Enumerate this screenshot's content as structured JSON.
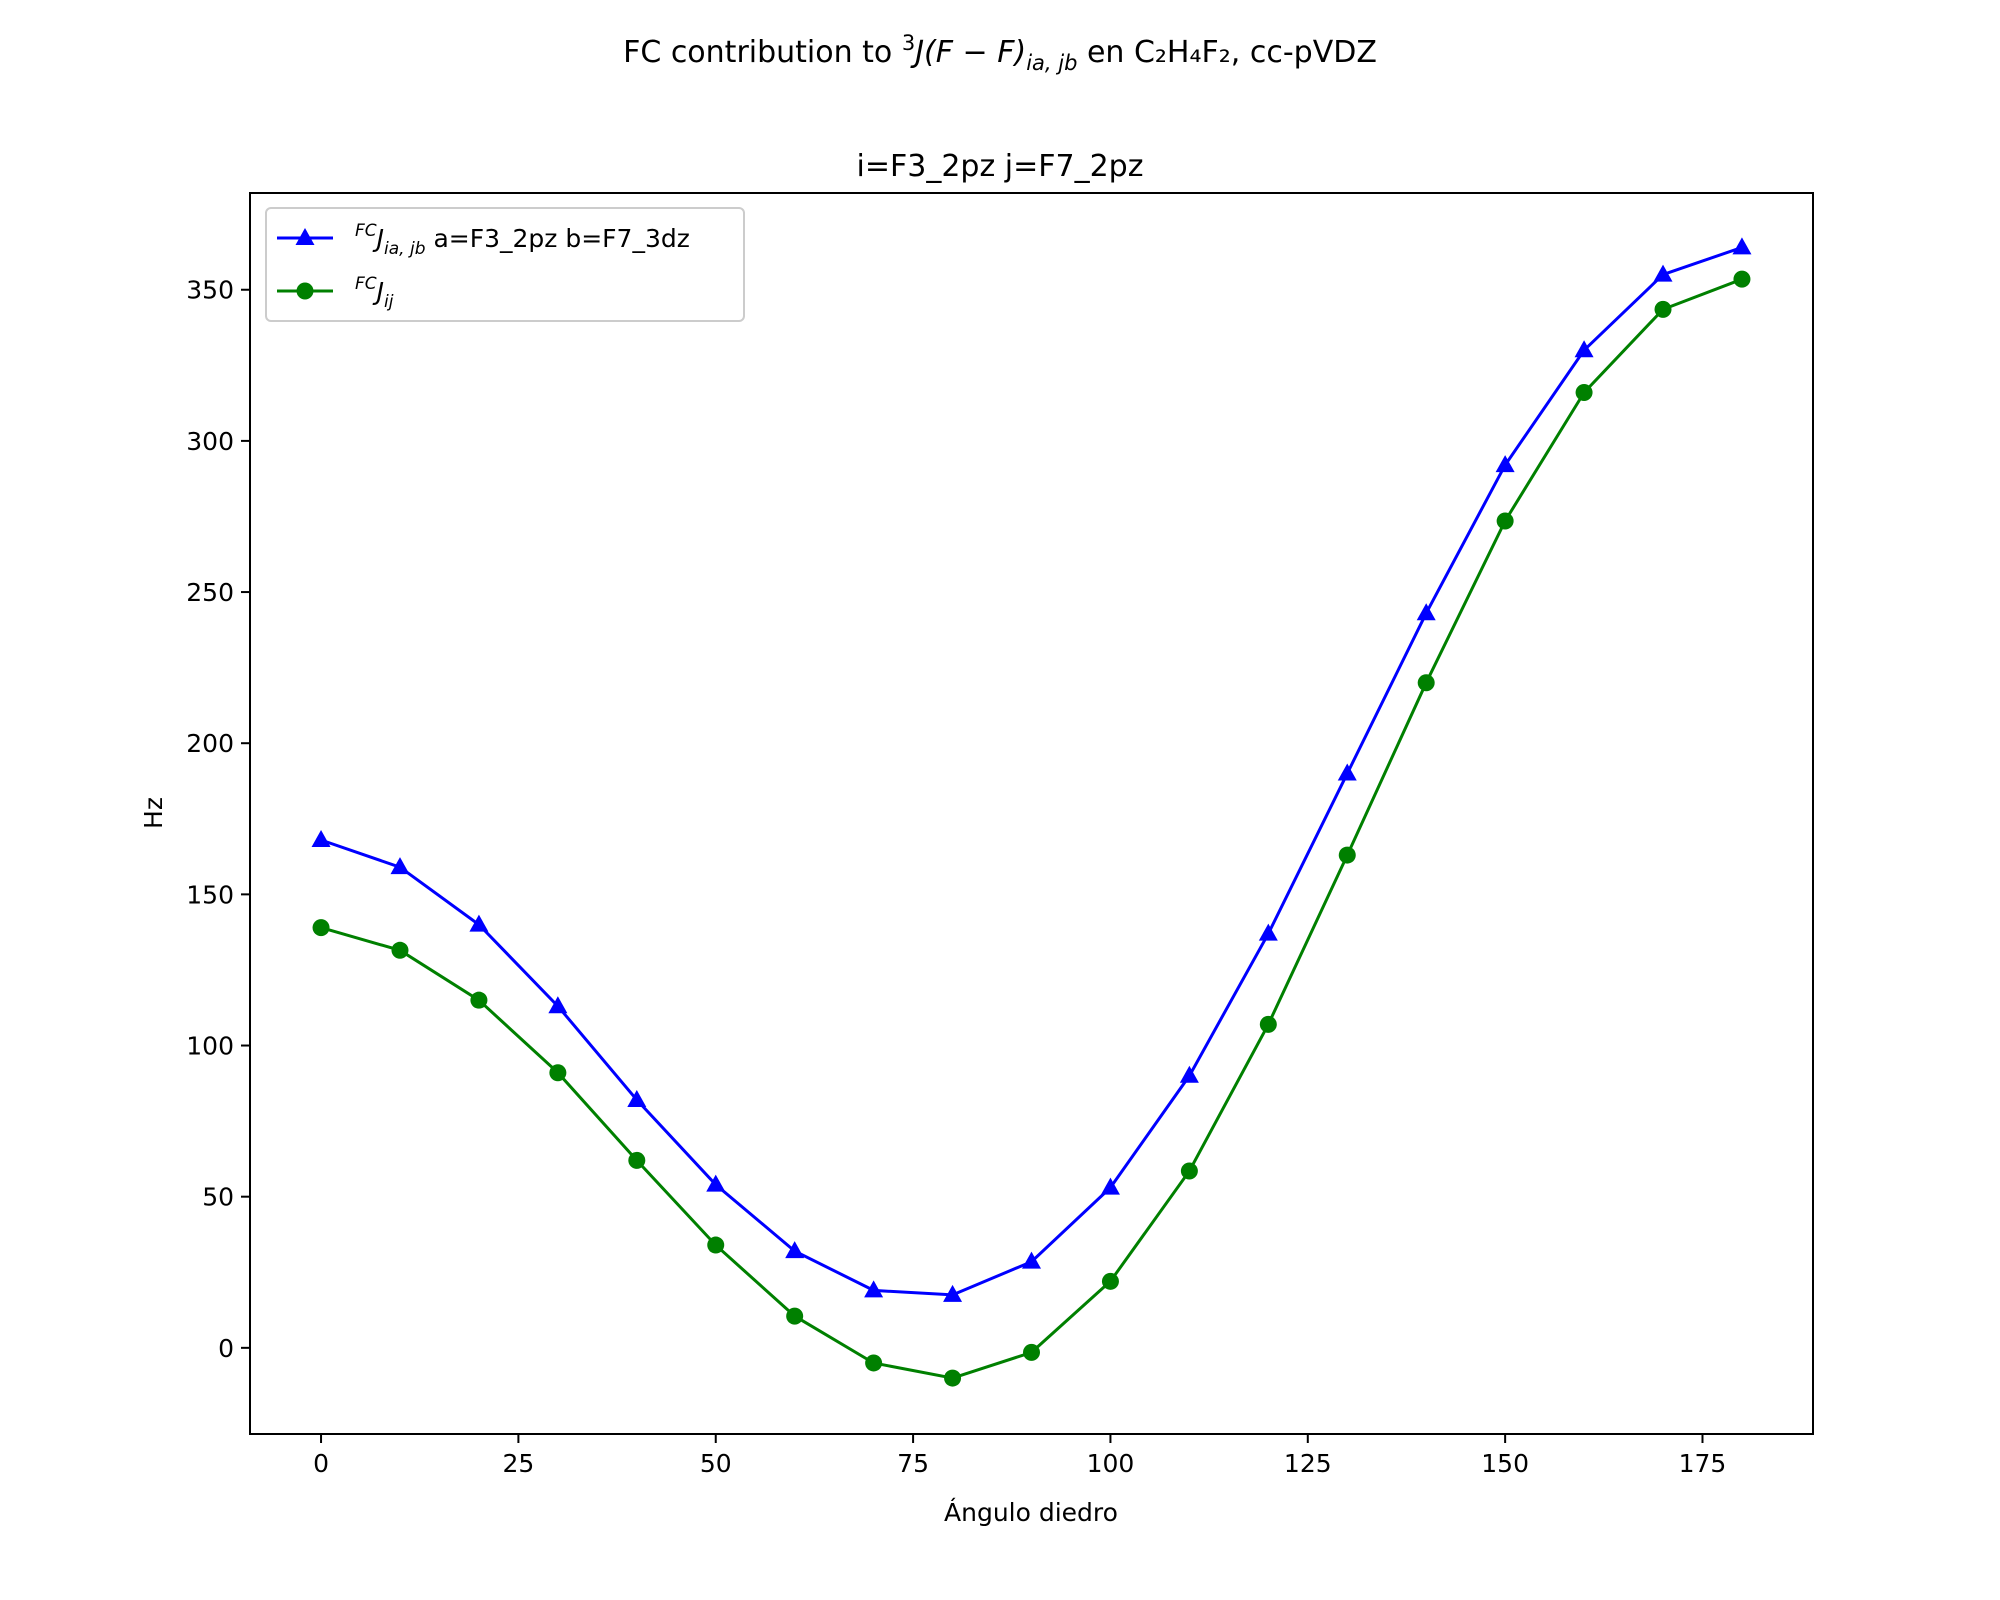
{
  "chart_data": {
    "type": "line",
    "suptitle": {
      "prefix": "FC contribution to ",
      "sup": "3",
      "math": "J(F − F)",
      "math_sub": "ia, jb",
      "suffix": " en C₂H₄F₂, cc-pVDZ"
    },
    "title": "i=F3_2pz  j=F7_2pz",
    "xlabel": "Ángulo diedro",
    "ylabel": "Hz",
    "xlim": [
      -9,
      189
    ],
    "ylim": [
      -28.5,
      382
    ],
    "xticks": [
      0,
      25,
      50,
      75,
      100,
      125,
      150,
      175
    ],
    "yticks": [
      0,
      50,
      100,
      150,
      200,
      250,
      300,
      350
    ],
    "grid": false,
    "legend_position": "upper-left",
    "x": [
      0,
      10,
      20,
      30,
      40,
      50,
      60,
      70,
      80,
      90,
      100,
      110,
      120,
      130,
      140,
      150,
      160,
      170,
      180
    ],
    "series": [
      {
        "legend_sup": "FC",
        "legend_main": "J",
        "legend_sub": "ia, jb",
        "legend_rest": " a=F3_2pz b=F7_3dz",
        "color": "#0000ff",
        "marker": "triangle",
        "values": [
          168,
          159,
          140,
          113,
          82,
          54,
          32,
          19,
          17.5,
          28.5,
          53,
          90,
          137,
          190,
          243,
          292,
          330,
          355,
          364
        ]
      },
      {
        "legend_sup": "FC",
        "legend_main": "J",
        "legend_sub": "ij",
        "legend_rest": "",
        "color": "#008000",
        "marker": "circle",
        "values": [
          139,
          131.5,
          115,
          91,
          62,
          34,
          10.5,
          -5,
          -10,
          -1.5,
          22,
          58.5,
          107,
          163,
          220,
          273.5,
          316,
          343.5,
          353.5
        ]
      }
    ]
  }
}
